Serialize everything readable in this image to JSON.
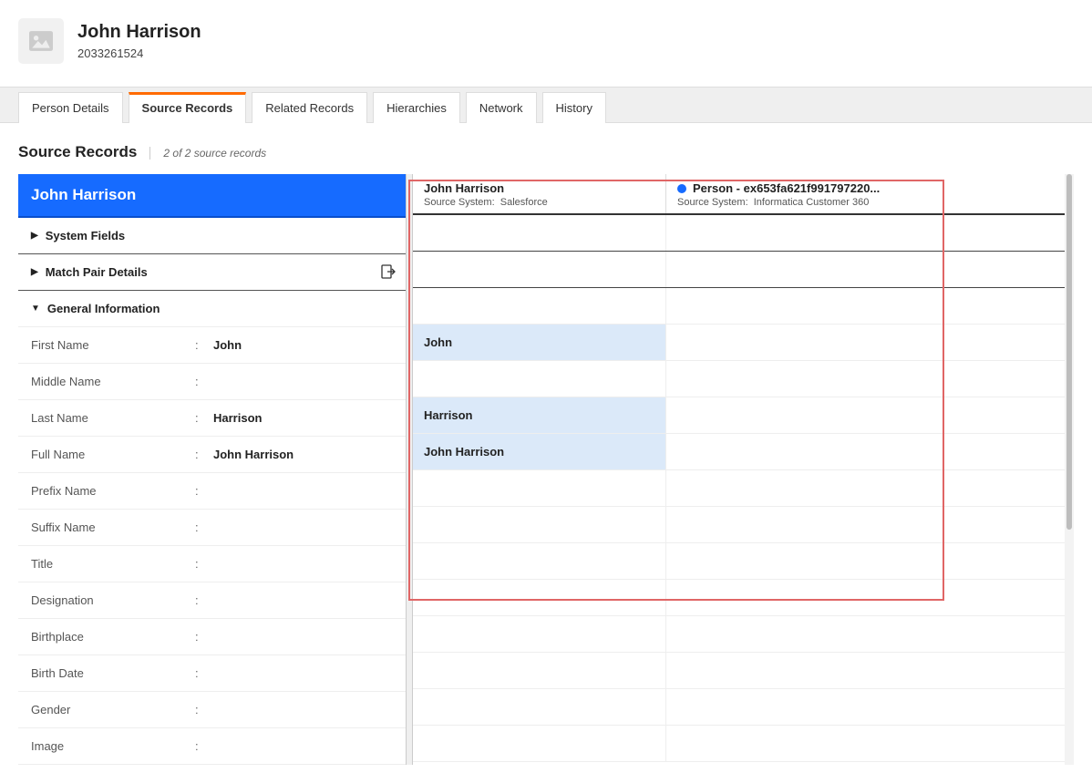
{
  "header": {
    "title": "John Harrison",
    "subtitle": "2033261524"
  },
  "tabs": [
    {
      "label": "Person Details",
      "active": false
    },
    {
      "label": "Source Records",
      "active": true
    },
    {
      "label": "Related Records",
      "active": false
    },
    {
      "label": "Hierarchies",
      "active": false
    },
    {
      "label": "Network",
      "active": false
    },
    {
      "label": "History",
      "active": false
    }
  ],
  "sourceRecords": {
    "heading": "Source Records",
    "countText": "2 of 2 source records",
    "recordName": "John Harrison",
    "sections": {
      "system": "System Fields",
      "match": "Match Pair Details",
      "general": "General Information"
    },
    "fields": [
      {
        "label": "First Name",
        "value": "John"
      },
      {
        "label": "Middle Name",
        "value": ""
      },
      {
        "label": "Last Name",
        "value": "Harrison"
      },
      {
        "label": "Full Name",
        "value": "John Harrison"
      },
      {
        "label": "Prefix Name",
        "value": ""
      },
      {
        "label": "Suffix Name",
        "value": ""
      },
      {
        "label": "Title",
        "value": ""
      },
      {
        "label": "Designation",
        "value": ""
      },
      {
        "label": "Birthplace",
        "value": ""
      },
      {
        "label": "Birth Date",
        "value": ""
      },
      {
        "label": "Gender",
        "value": ""
      },
      {
        "label": "Image",
        "value": ""
      }
    ],
    "sourceColumns": [
      {
        "title": "John Harrison",
        "sourceLabel": "Source System:",
        "sourceValue": "Salesforce",
        "dot": false,
        "cells": [
          "",
          "",
          "",
          "John",
          "",
          "Harrison",
          "John Harrison",
          "",
          "",
          "",
          "",
          "",
          "",
          "",
          ""
        ],
        "highlightIdx": [
          3,
          5,
          6
        ]
      },
      {
        "title": "Person - ex653fa621f991797220...",
        "sourceLabel": "Source System:",
        "sourceValue": "Informatica Customer 360",
        "dot": true,
        "cells": [
          "",
          "",
          "",
          "",
          "",
          "",
          "",
          "",
          "",
          "",
          "",
          "",
          "",
          "",
          ""
        ],
        "highlightIdx": []
      }
    ]
  },
  "colors": {
    "accent": "#166bff",
    "activeTab": "#ff6a00",
    "highlightCell": "#dbe9f9",
    "annotationBox": "#e06666"
  }
}
